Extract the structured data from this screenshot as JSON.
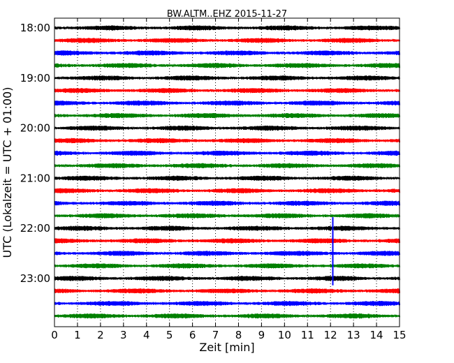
{
  "chart_data": {
    "type": "line",
    "title": "BW.ALTM..EHZ 2015-11-27",
    "xlabel": "Zeit  [min]",
    "ylabel": "UTC (Lokalzeit = UTC + 01:00)",
    "xlim": [
      0,
      15
    ],
    "x_ticks": [
      "0",
      "1",
      "2",
      "3",
      "4",
      "5",
      "6",
      "7",
      "8",
      "9",
      "10",
      "11",
      "12",
      "13",
      "14",
      "15"
    ],
    "y_tick_labels": [
      "18:00",
      "19:00",
      "20:00",
      "21:00",
      "22:00",
      "23:00"
    ],
    "grid": "vertical dotted",
    "trace_interval_min": 15,
    "trace_start_times": [
      "18:00",
      "18:15",
      "18:30",
      "18:45",
      "19:00",
      "19:15",
      "19:30",
      "19:45",
      "20:00",
      "20:15",
      "20:30",
      "20:45",
      "21:00",
      "21:15",
      "21:30",
      "21:45",
      "22:00",
      "22:15",
      "22:30",
      "22:45",
      "23:00",
      "23:15",
      "23:30",
      "23:45"
    ],
    "trace_colors": [
      "#000000",
      "#ff0000",
      "#0000ff",
      "#008000"
    ],
    "event": {
      "time_min": 12.1,
      "from": "21:45",
      "to": "23:00",
      "color": "#0000ff"
    }
  }
}
